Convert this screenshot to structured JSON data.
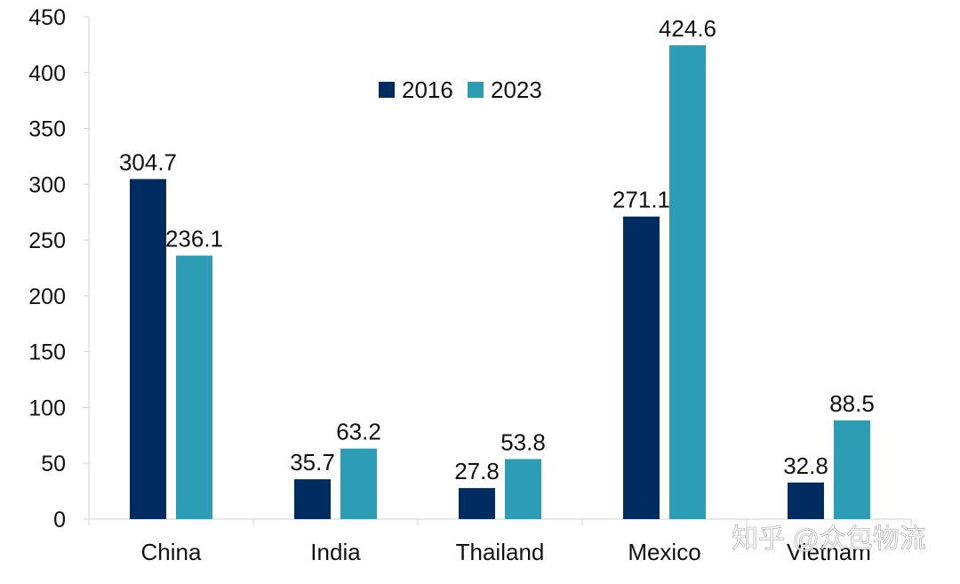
{
  "chart_data": {
    "type": "bar",
    "title": "",
    "xlabel": "",
    "ylabel": "",
    "categories": [
      "China",
      "India",
      "Thailand",
      "Mexico",
      "Vietnam"
    ],
    "series": [
      {
        "name": "2016",
        "color": "#002b61",
        "values": [
          304.7,
          35.7,
          27.8,
          271.1,
          32.8
        ]
      },
      {
        "name": "2023",
        "color": "#2c9db4",
        "values": [
          236.1,
          63.2,
          53.8,
          424.6,
          88.5
        ]
      }
    ],
    "ylim": [
      0,
      450
    ],
    "yticks": [
      0,
      50,
      100,
      150,
      200,
      250,
      300,
      350,
      400,
      450
    ],
    "grid": false,
    "legend": "top-center",
    "data_labels": [
      [
        "304.7",
        "35.7",
        "27.8",
        "271.1",
        "32.8"
      ],
      [
        "236.1",
        "63.2",
        "53.8",
        "424.6",
        "88.5"
      ]
    ]
  },
  "watermark": {
    "text": "知乎 @众包物流"
  }
}
